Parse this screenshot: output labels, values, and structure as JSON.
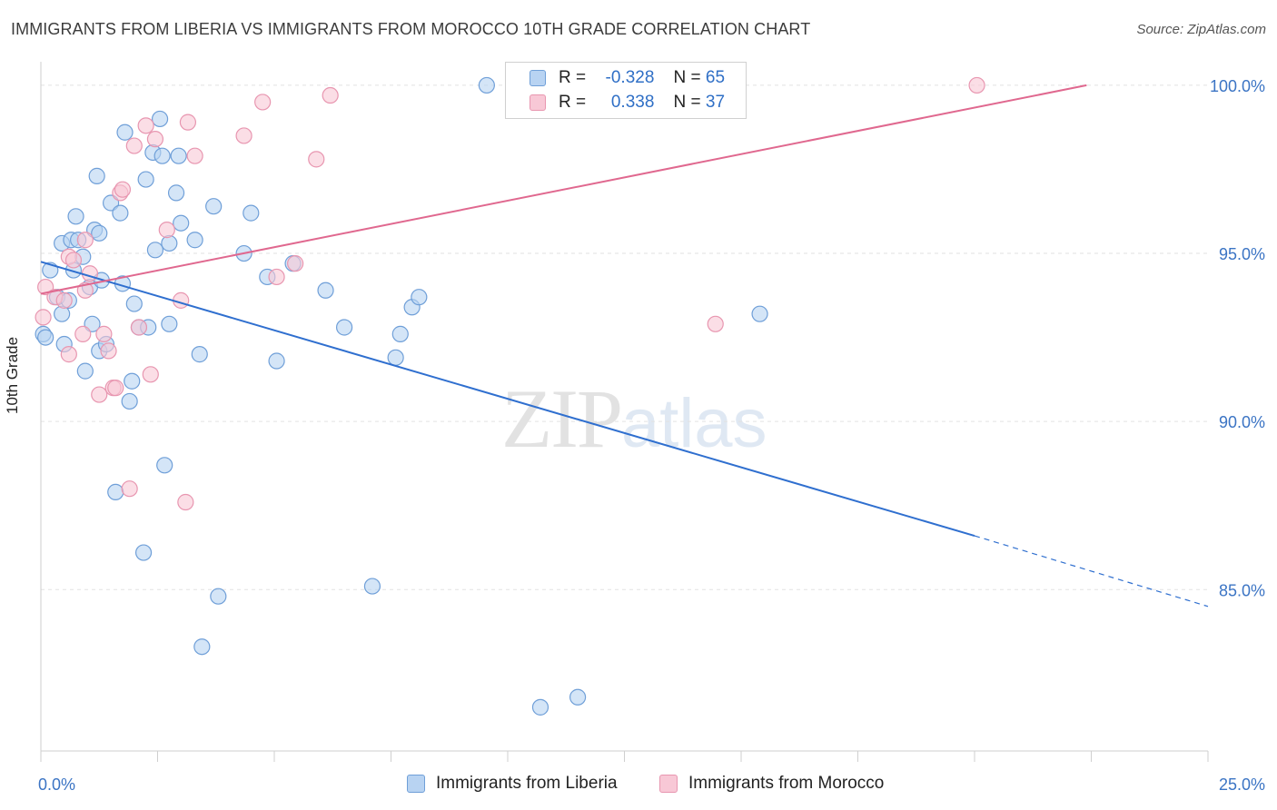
{
  "title": "IMMIGRANTS FROM LIBERIA VS IMMIGRANTS FROM MOROCCO 10TH GRADE CORRELATION CHART",
  "source": "Source: ZipAtlas.com",
  "watermark": {
    "zip": "ZIP",
    "atlas": "atlas"
  },
  "legend": {
    "r_label": "R =",
    "n_label": "N =",
    "rows": [
      {
        "r": "-0.328",
        "n": "65"
      },
      {
        "r": "0.338",
        "n": "37"
      }
    ]
  },
  "colors": {
    "liberia_fill": "#b8d3f2",
    "liberia_stroke": "#6f9fd8",
    "liberia_line": "#2f6fcf",
    "morocco_fill": "#f8c8d6",
    "morocco_stroke": "#e896b0",
    "morocco_line": "#e0688f",
    "tick_label": "#3b74c4",
    "grid": "#e2e2e2"
  },
  "chart_data": {
    "type": "scatter",
    "title": "IMMIGRANTS FROM LIBERIA VS IMMIGRANTS FROM MOROCCO 10TH GRADE CORRELATION CHART",
    "xlabel": "",
    "ylabel": "10th Grade",
    "xlim": [
      0,
      25
    ],
    "ylim": [
      80.2,
      100.7
    ],
    "x_tick_labels": [
      "0.0%",
      "25.0%"
    ],
    "y_ticks": [
      85,
      90,
      95,
      100
    ],
    "y_tick_labels": [
      "85.0%",
      "90.0%",
      "95.0%",
      "100.0%"
    ],
    "grid": true,
    "legend_placement": "bottom-center",
    "series": [
      {
        "name": "Immigrants from Liberia",
        "R": -0.328,
        "N": 65,
        "points": [
          [
            0.05,
            92.6
          ],
          [
            0.1,
            92.5
          ],
          [
            0.2,
            94.5
          ],
          [
            0.35,
            93.7
          ],
          [
            0.45,
            93.2
          ],
          [
            0.45,
            95.3
          ],
          [
            0.5,
            92.3
          ],
          [
            0.6,
            93.6
          ],
          [
            0.65,
            95.4
          ],
          [
            0.7,
            94.5
          ],
          [
            0.75,
            96.1
          ],
          [
            0.8,
            95.4
          ],
          [
            0.9,
            94.9
          ],
          [
            0.95,
            91.5
          ],
          [
            1.05,
            94.0
          ],
          [
            1.1,
            92.9
          ],
          [
            1.15,
            95.7
          ],
          [
            1.2,
            97.3
          ],
          [
            1.25,
            95.6
          ],
          [
            1.25,
            92.1
          ],
          [
            1.3,
            94.2
          ],
          [
            1.4,
            92.3
          ],
          [
            1.5,
            96.5
          ],
          [
            1.6,
            87.9
          ],
          [
            1.7,
            96.2
          ],
          [
            1.75,
            94.1
          ],
          [
            1.8,
            98.6
          ],
          [
            1.9,
            90.6
          ],
          [
            1.95,
            91.2
          ],
          [
            2.0,
            93.5
          ],
          [
            2.1,
            92.8
          ],
          [
            2.2,
            86.1
          ],
          [
            2.25,
            97.2
          ],
          [
            2.3,
            92.8
          ],
          [
            2.4,
            98.0
          ],
          [
            2.45,
            95.1
          ],
          [
            2.55,
            99.0
          ],
          [
            2.6,
            97.9
          ],
          [
            2.65,
            88.7
          ],
          [
            2.75,
            92.9
          ],
          [
            2.75,
            95.3
          ],
          [
            2.9,
            96.8
          ],
          [
            2.95,
            97.9
          ],
          [
            3.0,
            95.9
          ],
          [
            3.3,
            95.4
          ],
          [
            3.4,
            92.0
          ],
          [
            3.45,
            83.3
          ],
          [
            3.7,
            96.4
          ],
          [
            3.8,
            84.8
          ],
          [
            4.35,
            95.0
          ],
          [
            4.5,
            96.2
          ],
          [
            4.85,
            94.3
          ],
          [
            5.05,
            91.8
          ],
          [
            5.4,
            94.7
          ],
          [
            6.1,
            93.9
          ],
          [
            6.5,
            92.8
          ],
          [
            7.1,
            85.1
          ],
          [
            7.6,
            91.9
          ],
          [
            7.7,
            92.6
          ],
          [
            7.95,
            93.4
          ],
          [
            8.1,
            93.7
          ],
          [
            9.55,
            100.0
          ],
          [
            10.7,
            81.5
          ],
          [
            11.5,
            81.8
          ],
          [
            15.4,
            93.2
          ]
        ],
        "trend": {
          "x": [
            0,
            20
          ],
          "y": [
            94.75,
            86.6
          ],
          "dashed_extension_to": [
            25,
            84.5
          ]
        }
      },
      {
        "name": "Immigrants from Morocco",
        "R": 0.338,
        "N": 37,
        "points": [
          [
            0.05,
            93.1
          ],
          [
            0.1,
            94.0
          ],
          [
            0.3,
            93.7
          ],
          [
            0.5,
            93.6
          ],
          [
            0.6,
            92.0
          ],
          [
            0.6,
            94.9
          ],
          [
            0.7,
            94.8
          ],
          [
            0.9,
            92.6
          ],
          [
            0.95,
            95.4
          ],
          [
            0.95,
            93.9
          ],
          [
            1.05,
            94.4
          ],
          [
            1.25,
            90.8
          ],
          [
            1.35,
            92.6
          ],
          [
            1.45,
            92.1
          ],
          [
            1.55,
            91.0
          ],
          [
            1.6,
            91.0
          ],
          [
            1.7,
            96.8
          ],
          [
            1.9,
            88.0
          ],
          [
            2.0,
            98.2
          ],
          [
            2.1,
            92.8
          ],
          [
            2.25,
            98.8
          ],
          [
            2.35,
            91.4
          ],
          [
            2.45,
            98.4
          ],
          [
            2.7,
            95.7
          ],
          [
            3.0,
            93.6
          ],
          [
            3.1,
            87.6
          ],
          [
            3.15,
            98.9
          ],
          [
            3.3,
            97.9
          ],
          [
            4.35,
            98.5
          ],
          [
            4.75,
            99.5
          ],
          [
            5.05,
            94.3
          ],
          [
            5.45,
            94.7
          ],
          [
            5.9,
            97.8
          ],
          [
            6.2,
            99.7
          ],
          [
            14.45,
            92.9
          ],
          [
            20.05,
            100.0
          ],
          [
            1.75,
            96.9
          ]
        ],
        "trend": {
          "x": [
            0,
            22.4
          ],
          "y": [
            93.8,
            100.0
          ]
        }
      }
    ]
  },
  "bottom_legend": [
    {
      "label": "Immigrants from Liberia"
    },
    {
      "label": "Immigrants from Morocco"
    }
  ]
}
